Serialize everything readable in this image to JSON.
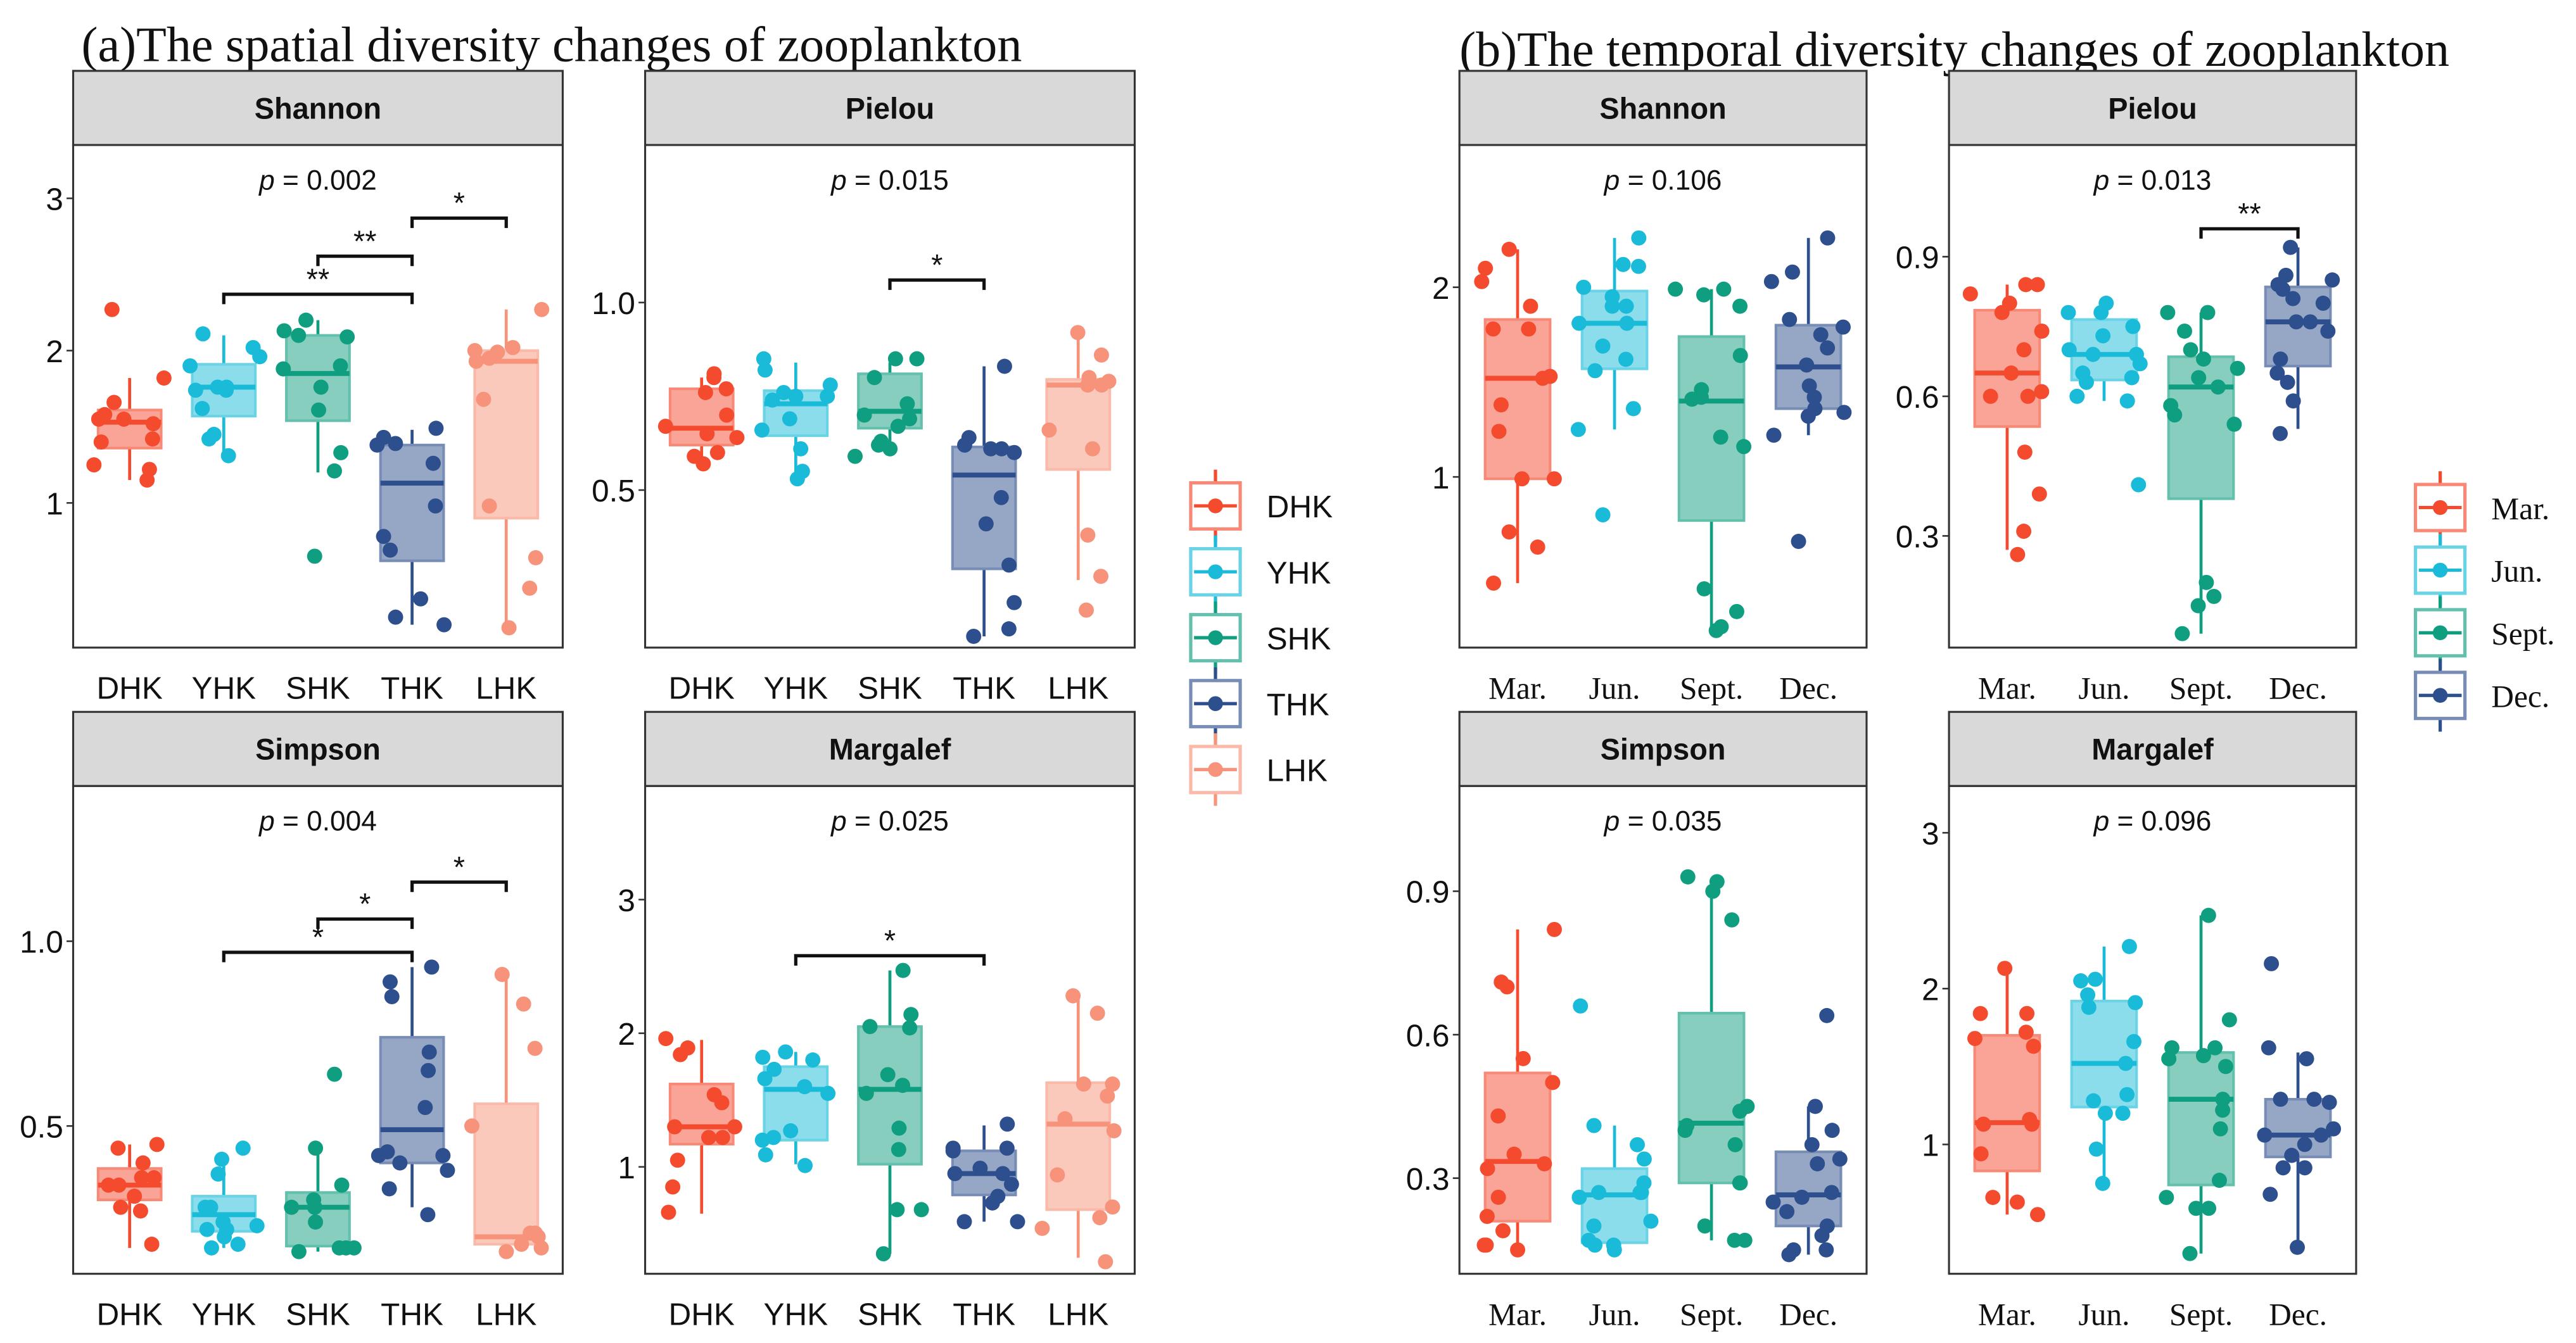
{
  "figure": {
    "panel_a_title": "(a)The spatial diversity changes of zooplankton",
    "panel_b_title": "(b)The temporal diversity changes of zooplankton"
  },
  "colors": {
    "DHK": "#F44A2E",
    "YHK": "#19BBD9",
    "SHK": "#0F9E80",
    "THK": "#2D4F8E",
    "LHK": "#F7937A",
    "Mar.": "#F44A2E",
    "Jun.": "#19BBD9",
    "Sept.": "#0F9E80",
    "Dec.": "#2D4F8E",
    "strip_bg": "#D9D9D9",
    "panel_border": "#333333"
  },
  "legends": {
    "spatial": [
      "DHK",
      "YHK",
      "SHK",
      "THK",
      "LHK"
    ],
    "temporal": [
      "Mar.",
      "Jun.",
      "Sept.",
      "Dec."
    ]
  },
  "chart_data": [
    {
      "type": "box",
      "group": "spatial",
      "title": "Shannon",
      "p_label": "= 0.002",
      "categories": [
        "DHK",
        "YHK",
        "SHK",
        "THK",
        "LHK"
      ],
      "ylim": [
        0.05,
        3.35
      ],
      "yticks": [
        1,
        2,
        3
      ],
      "ytick_labels": [
        "1",
        "2",
        "3"
      ],
      "boxes": [
        {
          "q1": 1.36,
          "median": 1.53,
          "q3": 1.61,
          "lo": 1.15,
          "hi": 1.82
        },
        {
          "q1": 1.57,
          "median": 1.76,
          "q3": 1.91,
          "lo": 1.3,
          "hi": 2.1
        },
        {
          "q1": 1.54,
          "median": 1.85,
          "q3": 2.1,
          "lo": 1.2,
          "hi": 2.2
        },
        {
          "q1": 0.62,
          "median": 1.13,
          "q3": 1.38,
          "lo": 0.2,
          "hi": 1.48
        },
        {
          "q1": 0.9,
          "median": 1.93,
          "q3": 2.0,
          "lo": 0.18,
          "hi": 2.27
        }
      ],
      "points": [
        [
          1.15,
          1.55,
          1.55,
          1.52,
          1.58,
          1.42,
          1.4,
          1.82,
          1.66,
          1.22,
          1.25,
          2.27
        ],
        [
          1.31,
          1.45,
          1.42,
          1.76,
          1.74,
          1.9,
          2.02,
          1.62,
          1.76,
          1.96,
          2.11,
          1.74
        ],
        [
          0.65,
          2.2,
          2.09,
          2.13,
          1.9,
          1.88,
          1.76,
          2.1,
          1.61,
          1.33,
          1.21
        ],
        [
          0.25,
          0.2,
          0.37,
          0.78,
          0.69,
          0.98,
          1.26,
          1.38,
          1.43,
          1.39,
          1.49
        ],
        [
          0.44,
          0.18,
          0.64,
          0.98,
          1.68,
          1.93,
          1.99,
          2.0,
          2.02,
          1.95,
          2.27
        ]
      ],
      "comparisons": [
        {
          "from": "YHK",
          "to": "THK",
          "label": "**",
          "y": 2.37
        },
        {
          "from": "SHK",
          "to": "THK",
          "label": "**",
          "y": 2.62
        },
        {
          "from": "THK",
          "to": "LHK",
          "label": "*",
          "y": 2.87
        }
      ]
    },
    {
      "type": "box",
      "group": "spatial",
      "title": "Pielou",
      "p_label": "= 0.015",
      "categories": [
        "DHK",
        "YHK",
        "SHK",
        "THK",
        "LHK"
      ],
      "ylim": [
        0.08,
        1.42
      ],
      "yticks": [
        0.5,
        1.0
      ],
      "ytick_labels": [
        "0.5",
        "1.0"
      ],
      "boxes": [
        {
          "q1": 0.62,
          "median": 0.665,
          "q3": 0.77,
          "lo": 0.56,
          "hi": 0.8
        },
        {
          "q1": 0.645,
          "median": 0.73,
          "q3": 0.765,
          "lo": 0.53,
          "hi": 0.84
        },
        {
          "q1": 0.665,
          "median": 0.71,
          "q3": 0.81,
          "lo": 0.59,
          "hi": 0.84
        },
        {
          "q1": 0.29,
          "median": 0.54,
          "q3": 0.615,
          "lo": 0.11,
          "hi": 0.83
        },
        {
          "q1": 0.555,
          "median": 0.78,
          "q3": 0.795,
          "lo": 0.26,
          "hi": 0.92
        }
      ],
      "points": [
        [
          0.57,
          0.65,
          0.7,
          0.67,
          0.81,
          0.8,
          0.77,
          0.76,
          0.59,
          0.6,
          0.64
        ],
        [
          0.53,
          0.61,
          0.85,
          0.75,
          0.78,
          0.69,
          0.75,
          0.82,
          0.76,
          0.66,
          0.55,
          0.74
        ],
        [
          0.59,
          0.63,
          0.8,
          0.85,
          0.85,
          0.73,
          0.7,
          0.67,
          0.69,
          0.62,
          0.61
        ],
        [
          0.61,
          0.6,
          0.61,
          0.48,
          0.41,
          0.3,
          0.2,
          0.62,
          0.64,
          0.13,
          0.11,
          0.83
        ],
        [
          0.18,
          0.27,
          0.38,
          0.78,
          0.79,
          0.61,
          0.66,
          0.92,
          0.78,
          0.8,
          0.86
        ]
      ],
      "comparisons": [
        {
          "from": "SHK",
          "to": "THK",
          "label": "*",
          "y": 1.06
        }
      ]
    },
    {
      "type": "box",
      "group": "spatial",
      "title": "Simpson",
      "p_label": "= 0.004",
      "categories": [
        "DHK",
        "YHK",
        "SHK",
        "THK",
        "LHK"
      ],
      "ylim": [
        0.1,
        1.42
      ],
      "yticks": [
        0.5,
        1.0
      ],
      "ytick_labels": [
        "0.5",
        "1.0"
      ],
      "boxes": [
        {
          "q1": 0.3,
          "median": 0.34,
          "q3": 0.385,
          "lo": 0.17,
          "hi": 0.45
        },
        {
          "q1": 0.215,
          "median": 0.26,
          "q3": 0.31,
          "lo": 0.17,
          "hi": 0.42
        },
        {
          "q1": 0.175,
          "median": 0.28,
          "q3": 0.32,
          "lo": 0.16,
          "hi": 0.44
        },
        {
          "q1": 0.4,
          "median": 0.49,
          "q3": 0.74,
          "lo": 0.28,
          "hi": 0.93
        },
        {
          "q1": 0.18,
          "median": 0.2,
          "q3": 0.56,
          "lo": 0.15,
          "hi": 0.91
        }
      ],
      "points": [
        [
          0.44,
          0.36,
          0.34,
          0.34,
          0.4,
          0.36,
          0.31,
          0.27,
          0.28,
          0.18,
          0.45
        ],
        [
          0.37,
          0.23,
          0.24,
          0.28,
          0.22,
          0.28,
          0.18,
          0.2,
          0.17,
          0.44,
          0.41,
          0.22
        ],
        [
          0.16,
          0.28,
          0.3,
          0.24,
          0.44,
          0.17,
          0.34,
          0.17,
          0.28,
          0.64,
          0.17
        ],
        [
          0.38,
          0.42,
          0.43,
          0.4,
          0.42,
          0.55,
          0.65,
          0.7,
          0.85,
          0.89,
          0.93,
          0.33,
          0.26
        ],
        [
          0.18,
          0.16,
          0.5,
          0.71,
          0.21,
          0.2,
          0.17,
          0.21,
          0.83,
          0.91
        ]
      ],
      "comparisons": [
        {
          "from": "YHK",
          "to": "THK",
          "label": "*",
          "y": 0.97
        },
        {
          "from": "SHK",
          "to": "THK",
          "label": "*",
          "y": 1.06
        },
        {
          "from": "THK",
          "to": "LHK",
          "label": "*",
          "y": 1.16
        }
      ]
    },
    {
      "type": "box",
      "group": "spatial",
      "title": "Margalef",
      "p_label": "= 0.025",
      "categories": [
        "DHK",
        "YHK",
        "SHK",
        "THK",
        "LHK"
      ],
      "ylim": [
        0.2,
        3.85
      ],
      "yticks": [
        1,
        2,
        3
      ],
      "ytick_labels": [
        "1",
        "2",
        "3"
      ],
      "boxes": [
        {
          "q1": 1.17,
          "median": 1.3,
          "q3": 1.62,
          "lo": 0.65,
          "hi": 1.95
        },
        {
          "q1": 1.2,
          "median": 1.58,
          "q3": 1.75,
          "lo": 1.02,
          "hi": 1.86
        },
        {
          "q1": 1.02,
          "median": 1.58,
          "q3": 2.05,
          "lo": 0.35,
          "hi": 2.47
        },
        {
          "q1": 0.79,
          "median": 0.95,
          "q3": 1.12,
          "lo": 0.59,
          "hi": 1.31
        },
        {
          "q1": 0.68,
          "median": 1.32,
          "q3": 1.63,
          "lo": 0.32,
          "hi": 2.28
        }
      ],
      "points": [
        [
          0.66,
          0.85,
          1.22,
          1.3,
          1.48,
          1.84,
          1.05,
          1.22,
          1.54,
          1.89,
          1.96,
          1.3
        ],
        [
          1.01,
          1.09,
          1.22,
          1.27,
          1.6,
          1.73,
          1.66,
          1.55,
          1.8,
          1.86,
          1.82,
          1.2
        ],
        [
          0.68,
          0.35,
          1.55,
          2.14,
          2.04,
          1.13,
          1.29,
          1.61,
          1.69,
          0.68,
          2.05,
          2.47
        ],
        [
          0.59,
          0.87,
          0.95,
          0.99,
          1.32,
          1.12,
          0.95,
          1.14,
          0.73,
          0.78,
          0.59,
          1.14
        ],
        [
          2.15,
          1.62,
          1.27,
          1.62,
          1.36,
          1.53,
          0.62,
          0.54,
          2.28,
          0.7,
          0.94,
          0.29
        ]
      ],
      "comparisons": [
        {
          "from": "YHK",
          "to": "THK",
          "label": "*",
          "y": 2.58
        }
      ]
    },
    {
      "type": "box",
      "group": "temporal",
      "title": "Shannon",
      "p_label": "= 0.106",
      "categories": [
        "Mar.",
        "Jun.",
        "Sept.",
        "Dec."
      ],
      "ylim": [
        0.1,
        2.75
      ],
      "yticks": [
        1,
        2
      ],
      "ytick_labels": [
        "1",
        "2"
      ],
      "boxes": [
        {
          "q1": 0.99,
          "median": 1.52,
          "q3": 1.83,
          "lo": 0.44,
          "hi": 2.2
        },
        {
          "q1": 1.57,
          "median": 1.81,
          "q3": 1.98,
          "lo": 1.25,
          "hi": 2.26
        },
        {
          "q1": 0.77,
          "median": 1.4,
          "q3": 1.74,
          "lo": 0.19,
          "hi": 1.99
        },
        {
          "q1": 1.36,
          "median": 1.58,
          "q3": 1.8,
          "lo": 1.22,
          "hi": 2.26
        }
      ],
      "points": [
        [
          0.44,
          0.63,
          0.71,
          0.99,
          0.99,
          1.24,
          1.38,
          1.52,
          1.53,
          1.78,
          1.78,
          1.9,
          2.03,
          2.1,
          2.2
        ],
        [
          0.8,
          1.25,
          1.36,
          1.56,
          1.62,
          1.69,
          1.81,
          1.81,
          1.9,
          1.9,
          1.95,
          2.0,
          2.11,
          2.12,
          2.26
        ],
        [
          0.19,
          0.21,
          0.29,
          0.41,
          1.16,
          1.21,
          1.41,
          1.42,
          1.46,
          1.64,
          1.9,
          1.96,
          1.99,
          1.99
        ],
        [
          0.66,
          1.22,
          1.32,
          1.34,
          1.36,
          1.42,
          1.48,
          1.59,
          1.68,
          1.75,
          1.79,
          1.83,
          2.03,
          2.08,
          2.26
        ]
      ],
      "comparisons": []
    },
    {
      "type": "box",
      "group": "temporal",
      "title": "Pielou",
      "p_label": "= 0.013",
      "categories": [
        "Mar.",
        "Jun.",
        "Sept.",
        "Dec."
      ],
      "ylim": [
        0.06,
        1.14
      ],
      "yticks": [
        0.3,
        0.6,
        0.9
      ],
      "ytick_labels": [
        "0.3",
        "0.6",
        "0.9"
      ],
      "boxes": [
        {
          "q1": 0.535,
          "median": 0.65,
          "q3": 0.785,
          "lo": 0.27,
          "hi": 0.84
        },
        {
          "q1": 0.635,
          "median": 0.69,
          "q3": 0.765,
          "lo": 0.59,
          "hi": 0.78
        },
        {
          "q1": 0.38,
          "median": 0.62,
          "q3": 0.685,
          "lo": 0.09,
          "hi": 0.78
        },
        {
          "q1": 0.665,
          "median": 0.76,
          "q3": 0.835,
          "lo": 0.53,
          "hi": 0.92
        }
      ],
      "points": [
        [
          0.26,
          0.31,
          0.39,
          0.48,
          0.6,
          0.61,
          0.6,
          0.65,
          0.7,
          0.74,
          0.78,
          0.8,
          0.82,
          0.84,
          0.84
        ],
        [
          0.41,
          0.59,
          0.6,
          0.63,
          0.64,
          0.67,
          0.69,
          0.7,
          0.69,
          0.73,
          0.75,
          0.78,
          0.78,
          0.8,
          0.65
        ],
        [
          0.09,
          0.15,
          0.17,
          0.2,
          0.54,
          0.56,
          0.58,
          0.62,
          0.64,
          0.66,
          0.68,
          0.7,
          0.74,
          0.78,
          0.78
        ],
        [
          0.52,
          0.59,
          0.63,
          0.65,
          0.68,
          0.74,
          0.76,
          0.76,
          0.8,
          0.81,
          0.83,
          0.84,
          0.85,
          0.86,
          0.92
        ]
      ],
      "comparisons": [
        {
          "from": "Sept.",
          "to": "Dec.",
          "label": "**",
          "y": 0.96
        }
      ]
    },
    {
      "type": "box",
      "group": "temporal",
      "title": "Simpson",
      "p_label": "= 0.035",
      "categories": [
        "Mar.",
        "Jun.",
        "Sept.",
        "Dec."
      ],
      "ylim": [
        0.1,
        1.12
      ],
      "yticks": [
        0.3,
        0.6,
        0.9
      ],
      "ytick_labels": [
        "0.3",
        "0.6",
        "0.9"
      ],
      "boxes": [
        {
          "q1": 0.21,
          "median": 0.335,
          "q3": 0.52,
          "lo": 0.15,
          "hi": 0.82
        },
        {
          "q1": 0.165,
          "median": 0.265,
          "q3": 0.32,
          "lo": 0.15,
          "hi": 0.41
        },
        {
          "q1": 0.29,
          "median": 0.415,
          "q3": 0.645,
          "lo": 0.17,
          "hi": 0.92
        },
        {
          "q1": 0.2,
          "median": 0.265,
          "q3": 0.355,
          "lo": 0.14,
          "hi": 0.45
        }
      ],
      "points": [
        [
          0.16,
          0.15,
          0.16,
          0.19,
          0.22,
          0.26,
          0.32,
          0.33,
          0.35,
          0.43,
          0.5,
          0.55,
          0.7,
          0.71,
          0.82
        ],
        [
          0.15,
          0.16,
          0.16,
          0.17,
          0.2,
          0.21,
          0.27,
          0.27,
          0.29,
          0.34,
          0.37,
          0.41,
          0.66,
          0.26,
          0.27
        ],
        [
          0.17,
          0.17,
          0.2,
          0.29,
          0.29,
          0.37,
          0.4,
          0.41,
          0.44,
          0.45,
          0.84,
          0.9,
          0.92,
          0.93
        ],
        [
          0.15,
          0.14,
          0.15,
          0.18,
          0.2,
          0.23,
          0.25,
          0.26,
          0.27,
          0.33,
          0.34,
          0.37,
          0.4,
          0.45,
          0.64
        ]
      ],
      "comparisons": []
    },
    {
      "type": "box",
      "group": "temporal",
      "title": "Margalef",
      "p_label": "= 0.096",
      "categories": [
        "Mar.",
        "Jun.",
        "Sept.",
        "Dec.",
        ""
      ],
      "ylim": [
        0.17,
        3.3
      ],
      "yticks": [
        1,
        2,
        3
      ],
      "ytick_labels": [
        "1",
        "2",
        "3"
      ],
      "boxes": [
        {
          "q1": 0.83,
          "median": 1.14,
          "q3": 1.7,
          "lo": 0.55,
          "hi": 2.13
        },
        {
          "q1": 1.24,
          "median": 1.52,
          "q3": 1.92,
          "lo": 0.75,
          "hi": 2.27
        },
        {
          "q1": 0.74,
          "median": 1.29,
          "q3": 1.59,
          "lo": 0.3,
          "hi": 2.47
        },
        {
          "q1": 0.92,
          "median": 1.06,
          "q3": 1.29,
          "lo": 0.34,
          "hi": 1.59
        }
      ],
      "points": [
        [
          0.55,
          0.63,
          0.66,
          0.94,
          1.13,
          1.13,
          1.16,
          1.63,
          1.68,
          1.72,
          1.84,
          1.84,
          2.13
        ],
        [
          0.75,
          0.97,
          1.2,
          1.2,
          1.28,
          1.32,
          1.52,
          1.66,
          1.88,
          1.91,
          1.96,
          2.05,
          2.06,
          2.27
        ],
        [
          0.3,
          0.59,
          0.59,
          0.66,
          0.77,
          1.1,
          1.22,
          1.29,
          1.5,
          1.55,
          1.57,
          1.62,
          1.62,
          1.8,
          2.47
        ],
        [
          0.34,
          0.68,
          0.85,
          0.85,
          0.93,
          1.0,
          1.06,
          1.06,
          1.1,
          1.27,
          1.29,
          1.29,
          1.55,
          1.62,
          2.16
        ]
      ],
      "comparisons": []
    }
  ]
}
